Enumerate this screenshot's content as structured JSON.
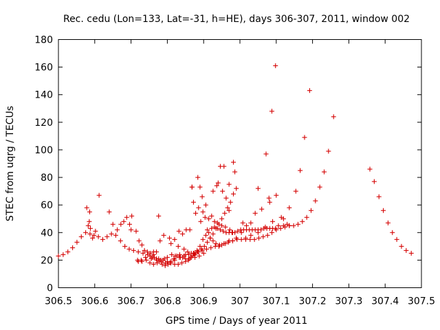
{
  "chart_data": {
    "type": "scatter",
    "title": "Rec. cedu (Lon=133, Lat=-31, h=HE), days 306-307, 2011, window 002",
    "xlabel": "GPS time / Days of year 2011",
    "ylabel": "STEC from uqrg / TECUs",
    "xlim": [
      306.5,
      307.5
    ],
    "ylim": [
      0,
      180
    ],
    "xticks": [
      306.5,
      306.6,
      306.7,
      306.8,
      306.9,
      307,
      307.1,
      307.2,
      307.3,
      307.4,
      307.5
    ],
    "yticks": [
      0,
      20,
      40,
      60,
      80,
      100,
      120,
      140,
      160,
      180
    ],
    "grid": false,
    "marker": "+",
    "color": "#d40000",
    "series": [
      {
        "points": [
          [
            306.5,
            23
          ],
          [
            306.513,
            24
          ],
          [
            306.526,
            26
          ],
          [
            306.539,
            29
          ],
          [
            306.551,
            33
          ],
          [
            306.563,
            37
          ],
          [
            306.575,
            40
          ],
          [
            306.587,
            39
          ],
          [
            306.598,
            38
          ],
          [
            306.61,
            37
          ],
          [
            306.622,
            35
          ],
          [
            306.634,
            37
          ],
          [
            306.646,
            39
          ],
          [
            306.658,
            38
          ],
          [
            306.671,
            34
          ],
          [
            306.683,
            30
          ],
          [
            306.695,
            28
          ],
          [
            306.707,
            27
          ],
          [
            306.72,
            26
          ],
          [
            306.733,
            25
          ],
          [
            306.746,
            24
          ],
          [
            306.759,
            22
          ],
          [
            306.771,
            20
          ],
          [
            306.783,
            19
          ],
          [
            306.795,
            18
          ],
          [
            306.807,
            18
          ],
          [
            306.82,
            20
          ],
          [
            306.833,
            22
          ],
          [
            306.846,
            23
          ],
          [
            306.859,
            24
          ],
          [
            306.872,
            25
          ],
          [
            306.884,
            26
          ],
          [
            306.896,
            27
          ],
          [
            306.908,
            28
          ],
          [
            306.92,
            29
          ],
          [
            306.932,
            30
          ],
          [
            306.944,
            31
          ],
          [
            306.956,
            32
          ],
          [
            306.968,
            33
          ],
          [
            306.98,
            34
          ],
          [
            306.992,
            35
          ],
          [
            307.004,
            35
          ],
          [
            307.016,
            35
          ],
          [
            307.028,
            35
          ],
          [
            307.04,
            35
          ],
          [
            307.052,
            36
          ],
          [
            307.064,
            37
          ],
          [
            307.076,
            38
          ],
          [
            307.088,
            40
          ],
          [
            307.1,
            42
          ],
          [
            307.112,
            43
          ],
          [
            307.124,
            44
          ],
          [
            307.136,
            45
          ],
          [
            307.148,
            45
          ],
          [
            307.16,
            46
          ],
          [
            307.172,
            48
          ],
          [
            307.184,
            51
          ],
          [
            307.196,
            56
          ],
          [
            307.208,
            63
          ],
          [
            307.22,
            73
          ],
          [
            307.232,
            84
          ],
          [
            307.244,
            99
          ],
          [
            307.258,
            124
          ],
          [
            307.358,
            86
          ],
          [
            307.37,
            77
          ],
          [
            307.383,
            66
          ],
          [
            307.395,
            56
          ],
          [
            307.408,
            47
          ],
          [
            307.42,
            40
          ],
          [
            307.432,
            35
          ],
          [
            307.445,
            30
          ],
          [
            307.458,
            27
          ],
          [
            307.472,
            25
          ]
        ]
      },
      {
        "points": [
          [
            306.578,
            58
          ],
          [
            306.586,
            55
          ],
          [
            306.582,
            45
          ],
          [
            306.585,
            48
          ],
          [
            306.588,
            43
          ],
          [
            306.594,
            36
          ],
          [
            306.602,
            41
          ],
          [
            306.612,
            67
          ],
          [
            306.64,
            55
          ],
          [
            306.65,
            46
          ],
          [
            306.662,
            42
          ],
          [
            306.672,
            46
          ],
          [
            306.68,
            48
          ],
          [
            306.688,
            51
          ],
          [
            306.696,
            46
          ],
          [
            306.702,
            52
          ],
          [
            306.7,
            42
          ],
          [
            306.714,
            41
          ],
          [
            306.722,
            34
          ],
          [
            306.73,
            31
          ],
          [
            306.737,
            27
          ],
          [
            306.745,
            26
          ],
          [
            306.753,
            25
          ],
          [
            306.762,
            24
          ],
          [
            306.77,
            21
          ],
          [
            306.778,
            19
          ],
          [
            306.786,
            17
          ],
          [
            306.794,
            16
          ],
          [
            306.802,
            17
          ],
          [
            306.81,
            19
          ],
          [
            306.818,
            21
          ],
          [
            306.826,
            23
          ],
          [
            306.834,
            24
          ],
          [
            306.842,
            22
          ],
          [
            306.85,
            21
          ],
          [
            306.858,
            20
          ],
          [
            306.866,
            22
          ],
          [
            306.874,
            25
          ],
          [
            306.882,
            27
          ],
          [
            306.89,
            30
          ],
          [
            306.898,
            35
          ],
          [
            306.906,
            38
          ],
          [
            306.914,
            40
          ],
          [
            306.922,
            43
          ],
          [
            306.93,
            44
          ],
          [
            306.938,
            43
          ],
          [
            306.946,
            42
          ],
          [
            306.954,
            41
          ],
          [
            306.962,
            40
          ],
          [
            306.97,
            40
          ],
          [
            306.978,
            40
          ],
          [
            306.986,
            40
          ],
          [
            306.994,
            41
          ],
          [
            307.002,
            42
          ],
          [
            307.01,
            42
          ],
          [
            307.018,
            42
          ],
          [
            307.026,
            42
          ],
          [
            307.034,
            42
          ],
          [
            307.042,
            42
          ],
          [
            307.05,
            42
          ],
          [
            307.058,
            42
          ],
          [
            307.066,
            43
          ],
          [
            307.074,
            43
          ],
          [
            307.082,
            43
          ],
          [
            307.09,
            43
          ],
          [
            307.098,
            43
          ],
          [
            307.106,
            45
          ],
          [
            307.12,
            50
          ],
          [
            307.136,
            58
          ],
          [
            307.154,
            70
          ],
          [
            307.166,
            85
          ],
          [
            307.178,
            109
          ],
          [
            307.192,
            143
          ],
          [
            307.098,
            161
          ],
          [
            307.088,
            128
          ],
          [
            307.072,
            97
          ],
          [
            307.082,
            62
          ]
        ]
      },
      {
        "points": [
          [
            306.72,
            19
          ],
          [
            306.728,
            20
          ],
          [
            306.74,
            22
          ],
          [
            306.752,
            23
          ],
          [
            306.764,
            22
          ],
          [
            306.776,
            21
          ],
          [
            306.788,
            20
          ],
          [
            306.8,
            19
          ],
          [
            306.81,
            18
          ],
          [
            306.82,
            17
          ],
          [
            306.83,
            17
          ],
          [
            306.84,
            18
          ],
          [
            306.85,
            19
          ],
          [
            306.86,
            21
          ],
          [
            306.87,
            23
          ],
          [
            306.878,
            25
          ],
          [
            306.886,
            26
          ],
          [
            306.894,
            28
          ],
          [
            306.902,
            30
          ],
          [
            306.91,
            33
          ],
          [
            306.918,
            36
          ],
          [
            306.926,
            39
          ],
          [
            306.934,
            43
          ],
          [
            306.942,
            46
          ],
          [
            306.95,
            50
          ],
          [
            306.958,
            54
          ],
          [
            306.966,
            58
          ],
          [
            306.974,
            62
          ],
          [
            306.982,
            68
          ],
          [
            306.99,
            72
          ],
          [
            306.946,
            88
          ],
          [
            306.956,
            88
          ],
          [
            306.936,
            74
          ],
          [
            306.926,
            70
          ],
          [
            306.906,
            60
          ],
          [
            306.896,
            66
          ],
          [
            306.886,
            58
          ],
          [
            306.878,
            54
          ],
          [
            306.872,
            62
          ],
          [
            306.868,
            73
          ],
          [
            306.884,
            80
          ],
          [
            306.89,
            73
          ],
          [
            306.94,
            76
          ],
          [
            306.952,
            70
          ],
          [
            306.962,
            65
          ],
          [
            306.97,
            56
          ],
          [
            306.982,
            91
          ],
          [
            306.986,
            84
          ],
          [
            306.97,
            75
          ],
          [
            306.868,
            73
          ],
          [
            306.862,
            42
          ],
          [
            306.852,
            42
          ],
          [
            306.842,
            39
          ],
          [
            306.832,
            41
          ],
          [
            306.82,
            35
          ],
          [
            306.806,
            36
          ],
          [
            306.79,
            38
          ],
          [
            306.78,
            34
          ],
          [
            306.77,
            26
          ],
          [
            306.762,
            26
          ],
          [
            306.756,
            21
          ],
          [
            306.81,
            32
          ],
          [
            306.83,
            30
          ],
          [
            306.846,
            28
          ],
          [
            306.856,
            26
          ],
          [
            306.866,
            25
          ],
          [
            306.876,
            24
          ],
          [
            306.892,
            48
          ],
          [
            306.904,
            51
          ],
          [
            306.914,
            50
          ],
          [
            306.922,
            52
          ],
          [
            306.93,
            48
          ],
          [
            306.938,
            47
          ],
          [
            306.95,
            45
          ],
          [
            306.96,
            44
          ],
          [
            306.972,
            42
          ],
          [
            306.98,
            40
          ],
          [
            307.008,
            47
          ],
          [
            307.018,
            45
          ],
          [
            307.03,
            47
          ],
          [
            307.042,
            54
          ],
          [
            307.05,
            72
          ],
          [
            307.06,
            57
          ],
          [
            307.08,
            65
          ],
          [
            307.1,
            67
          ],
          [
            307.114,
            51
          ],
          [
            307.12,
            45
          ],
          [
            307.13,
            46
          ],
          [
            307.136,
            45
          ],
          [
            307.09,
            48
          ],
          [
            307.07,
            44
          ],
          [
            307.05,
            40
          ],
          [
            307.03,
            38
          ],
          [
            307.016,
            36
          ],
          [
            307.004,
            40
          ],
          [
            306.898,
            55
          ],
          [
            306.91,
            42
          ],
          [
            306.918,
            36
          ],
          [
            306.926,
            34
          ],
          [
            306.934,
            32
          ],
          [
            306.942,
            30
          ],
          [
            306.95,
            31
          ],
          [
            306.96,
            32
          ],
          [
            306.97,
            34
          ],
          [
            306.98,
            34
          ],
          [
            306.99,
            36
          ],
          [
            306.776,
            52
          ],
          [
            306.718,
            20
          ],
          [
            306.73,
            19
          ],
          [
            306.742,
            20
          ],
          [
            306.752,
            18
          ],
          [
            306.762,
            17
          ],
          [
            306.772,
            18
          ],
          [
            306.782,
            20
          ],
          [
            306.792,
            21
          ],
          [
            306.8,
            22
          ],
          [
            306.812,
            24
          ],
          [
            306.822,
            23
          ],
          [
            306.836,
            22
          ],
          [
            306.85,
            24
          ],
          [
            306.864,
            22
          ],
          [
            306.876,
            22
          ],
          [
            306.888,
            23
          ],
          [
            306.9,
            25
          ]
        ]
      }
    ]
  }
}
